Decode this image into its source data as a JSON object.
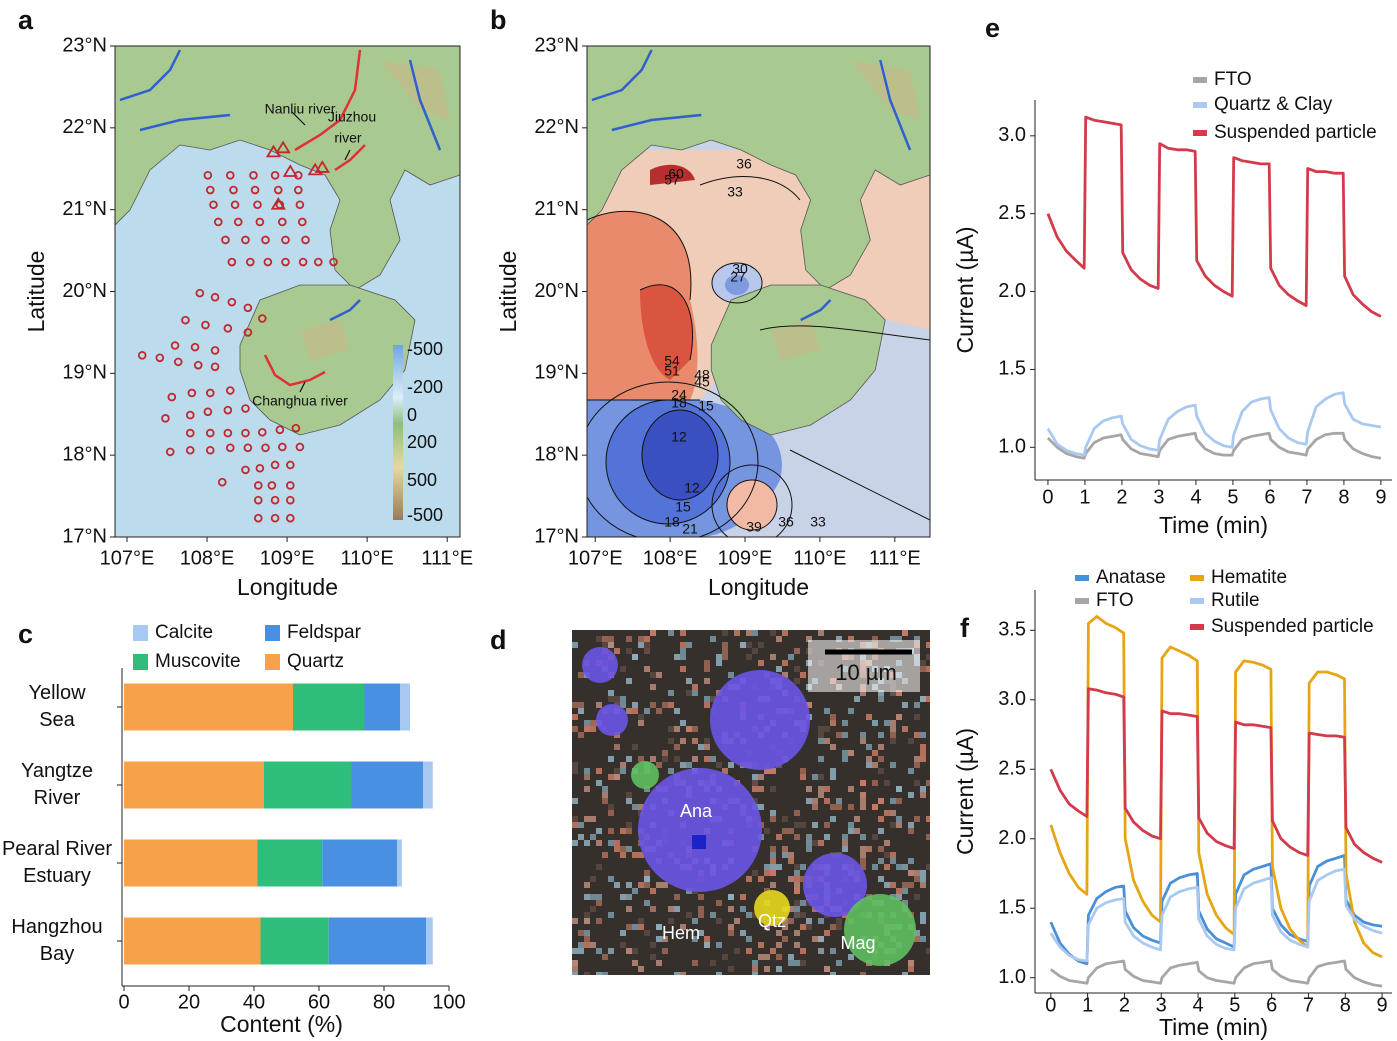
{
  "chart_data": [
    {
      "type": "map",
      "panel": "a",
      "xlabel": "Longitude",
      "ylabel": "Latitude",
      "xlim": [
        106.85,
        111.16
      ],
      "ylim": [
        17,
        23
      ],
      "xticks": [
        {
          "value": 107,
          "label": "107°E"
        },
        {
          "value": 108,
          "label": "108°E"
        },
        {
          "value": 109,
          "label": "109°E"
        },
        {
          "value": 110,
          "label": "110°E"
        },
        {
          "value": 111,
          "label": "111°E"
        }
      ],
      "yticks": [
        {
          "value": 17,
          "label": "17°N"
        },
        {
          "value": 18,
          "label": "18°N"
        },
        {
          "value": 19,
          "label": "19°N"
        },
        {
          "value": 20,
          "label": "20°N"
        },
        {
          "value": 21,
          "label": "21°N"
        },
        {
          "value": 22,
          "label": "22°N"
        },
        {
          "value": 23,
          "label": "23°N"
        }
      ],
      "stations": {
        "color": "#c0282d",
        "x": [
          108.01,
          108.29,
          108.58,
          108.85,
          109.14,
          108.04,
          108.33,
          108.6,
          108.89,
          109.14,
          108.08,
          108.35,
          108.63,
          108.91,
          109.16,
          108.14,
          108.39,
          108.66,
          108.94,
          109.19,
          108.23,
          108.48,
          108.73,
          108.98,
          109.23,
          108.31,
          108.54,
          108.76,
          108.98,
          109.2,
          109.39,
          109.58,
          107.91,
          108.1,
          108.31,
          108.51,
          108.69,
          107.73,
          107.98,
          108.26,
          108.51,
          107.6,
          107.85,
          108.1,
          107.19,
          107.41,
          107.64,
          107.89,
          108.1,
          107.56,
          107.81,
          108.04,
          108.29,
          107.48,
          107.79,
          108.01,
          108.26,
          108.48,
          107.79,
          108.04,
          108.26,
          108.48,
          108.69,
          108.91,
          109.11,
          107.54,
          107.79,
          108.04,
          108.29,
          108.51,
          108.73,
          108.94,
          109.16,
          108.19,
          108.48,
          108.66,
          108.85,
          109.04,
          108.64,
          108.81,
          109.04,
          108.64,
          108.85,
          109.04,
          108.64,
          108.85,
          109.04
        ],
        "y": [
          21.42,
          21.42,
          21.42,
          21.42,
          21.42,
          21.24,
          21.24,
          21.24,
          21.24,
          21.24,
          21.06,
          21.06,
          21.06,
          21.06,
          21.06,
          20.85,
          20.85,
          20.85,
          20.85,
          20.85,
          20.63,
          20.63,
          20.63,
          20.63,
          20.63,
          20.36,
          20.36,
          20.36,
          20.36,
          20.36,
          20.36,
          20.36,
          19.98,
          19.93,
          19.87,
          19.8,
          19.67,
          19.65,
          19.59,
          19.55,
          19.5,
          19.34,
          19.32,
          19.28,
          19.22,
          19.19,
          19.14,
          19.1,
          19.08,
          18.71,
          18.76,
          18.76,
          18.79,
          18.45,
          18.49,
          18.53,
          18.55,
          18.57,
          18.27,
          18.27,
          18.27,
          18.27,
          18.28,
          18.31,
          18.33,
          18.04,
          18.06,
          18.06,
          18.09,
          18.09,
          18.09,
          18.1,
          18.1,
          17.67,
          17.82,
          17.84,
          17.88,
          17.88,
          17.63,
          17.63,
          17.63,
          17.45,
          17.45,
          17.45,
          17.23,
          17.23,
          17.23
        ]
      },
      "river_sites": {
        "color": "#c0282d",
        "x": [
          108.83,
          108.95,
          109.04,
          109.35,
          109.44,
          108.89
        ],
        "y": [
          21.7,
          21.75,
          21.46,
          21.48,
          21.51,
          21.06
        ]
      },
      "annotations": [
        "Nanliu river",
        "Jiuzhou",
        "river",
        "Changhua river"
      ],
      "colorbar_labels": [
        -500,
        -200,
        0,
        200,
        500,
        -500
      ]
    },
    {
      "type": "map",
      "panel": "b",
      "xlabel": "Longitude",
      "ylabel": "Latitude",
      "xlim": [
        106.89,
        111.47
      ],
      "ylim": [
        17,
        23
      ],
      "xticks": [
        {
          "value": 107,
          "label": "107°E"
        },
        {
          "value": 108,
          "label": "108°E"
        },
        {
          "value": 109,
          "label": "109°E"
        },
        {
          "value": 110,
          "label": "110°E"
        },
        {
          "value": 111,
          "label": "111°E"
        }
      ],
      "yticks": [
        {
          "value": 17,
          "label": "17°N"
        },
        {
          "value": 18,
          "label": "18°N"
        },
        {
          "value": 19,
          "label": "19°N"
        },
        {
          "value": 20,
          "label": "20°N"
        },
        {
          "value": 21,
          "label": "21°N"
        },
        {
          "value": 22,
          "label": "22°N"
        },
        {
          "value": 23,
          "label": "23°N"
        }
      ],
      "contour_labels": [
        36,
        33,
        30,
        27,
        60,
        57,
        54,
        51,
        48,
        45,
        24,
        18,
        15,
        12,
        12,
        15,
        18,
        21,
        39,
        36,
        33
      ]
    },
    {
      "type": "bar",
      "panel": "c",
      "orientation": "horizontal",
      "stacked": true,
      "xlabel": "Content (%)",
      "categories": [
        [
          "Yellow",
          "Sea"
        ],
        [
          "Yangtze",
          "River"
        ],
        [
          "Pearal River",
          "Estuary"
        ],
        [
          "Hangzhou",
          "Bay"
        ]
      ],
      "series": [
        {
          "name": "Quartz",
          "color": "#f7a24a",
          "values": [
            52,
            43,
            41,
            42
          ]
        },
        {
          "name": "Muscovite",
          "color": "#2ebd7a",
          "values": [
            22,
            27,
            20,
            21
          ]
        },
        {
          "name": "Feldspar",
          "color": "#4a90e2",
          "values": [
            11,
            22,
            23,
            30
          ]
        },
        {
          "name": "Calcite",
          "color": "#a7c8f0",
          "values": [
            3,
            3,
            1.5,
            2
          ]
        }
      ],
      "xlim": [
        0,
        100
      ],
      "xticks": [
        0,
        20,
        40,
        60,
        80,
        100
      ]
    },
    {
      "type": "image",
      "panel": "d",
      "labels": [
        "Ana",
        "Hem",
        "Qtz",
        "Mag"
      ],
      "scale_bar": "10 µm"
    },
    {
      "type": "line",
      "panel": "e",
      "xlabel": "Time (min)",
      "ylabel": "Current (µA)",
      "xlim": [
        -0.35,
        9.3
      ],
      "ylim": [
        0.79,
        3.23
      ],
      "xticks": [
        0,
        1,
        2,
        3,
        4,
        5,
        6,
        7,
        8,
        9
      ],
      "yticks": [
        {
          "value": 1,
          "label": "1.0"
        },
        {
          "value": 1.5,
          "label": "1.5"
        },
        {
          "value": 2,
          "label": "2.0"
        },
        {
          "value": 2.5,
          "label": "2.5"
        },
        {
          "value": 3,
          "label": "3.0"
        }
      ],
      "x": [
        0,
        0.25,
        0.5,
        0.75,
        0.98,
        1.02,
        1.25,
        1.5,
        1.75,
        1.98,
        2.02,
        2.25,
        2.5,
        2.75,
        2.98,
        3.02,
        3.25,
        3.5,
        3.75,
        3.98,
        4.02,
        4.25,
        4.5,
        4.75,
        4.98,
        5.02,
        5.25,
        5.5,
        5.75,
        5.98,
        6.02,
        6.25,
        6.5,
        6.75,
        6.98,
        7.02,
        7.25,
        7.5,
        7.75,
        7.98,
        8.02,
        8.25,
        8.5,
        8.75,
        9
      ],
      "series": [
        {
          "name": "FTO",
          "color": "#a6a6a6",
          "values": [
            1.06,
            1.0,
            0.96,
            0.94,
            0.93,
            0.96,
            1.03,
            1.06,
            1.07,
            1.08,
            1.05,
            0.99,
            0.96,
            0.95,
            0.94,
            0.98,
            1.05,
            1.07,
            1.08,
            1.09,
            1.05,
            0.99,
            0.96,
            0.95,
            0.95,
            0.98,
            1.05,
            1.07,
            1.08,
            1.09,
            1.05,
            1.0,
            0.97,
            0.96,
            0.95,
            0.99,
            1.05,
            1.08,
            1.09,
            1.09,
            1.05,
            0.99,
            0.96,
            0.94,
            0.93
          ]
        },
        {
          "name": "Quartz & Clay",
          "color": "#a9c9f1",
          "values": [
            1.12,
            1.02,
            0.98,
            0.96,
            0.95,
            1.0,
            1.12,
            1.17,
            1.19,
            1.2,
            1.15,
            1.05,
            1.01,
            0.99,
            0.98,
            1.05,
            1.18,
            1.23,
            1.26,
            1.27,
            1.2,
            1.09,
            1.04,
            1.01,
            1.0,
            1.08,
            1.23,
            1.29,
            1.31,
            1.32,
            1.24,
            1.12,
            1.06,
            1.03,
            1.02,
            1.1,
            1.26,
            1.31,
            1.34,
            1.35,
            1.28,
            1.18,
            1.15,
            1.14,
            1.13
          ]
        },
        {
          "name": "Suspended particle",
          "color": "#d33a4a",
          "values": [
            2.5,
            2.35,
            2.26,
            2.2,
            2.15,
            3.12,
            3.1,
            3.09,
            3.08,
            3.07,
            2.25,
            2.14,
            2.08,
            2.04,
            2.02,
            2.95,
            2.92,
            2.91,
            2.91,
            2.9,
            2.2,
            2.1,
            2.04,
            2.0,
            1.97,
            2.86,
            2.84,
            2.83,
            2.82,
            2.82,
            2.15,
            2.04,
            1.98,
            1.94,
            1.91,
            2.79,
            2.77,
            2.77,
            2.76,
            2.76,
            2.1,
            1.98,
            1.92,
            1.87,
            1.84
          ]
        }
      ]
    },
    {
      "type": "line",
      "panel": "f",
      "xlabel": "Time (min)",
      "ylabel": "Current (µA)",
      "xlim": [
        -0.43,
        9.27
      ],
      "ylim": [
        0.89,
        3.79
      ],
      "xticks": [
        0,
        1,
        2,
        3,
        4,
        5,
        6,
        7,
        8,
        9
      ],
      "yticks": [
        {
          "value": 1,
          "label": "1.0"
        },
        {
          "value": 1.5,
          "label": "1.5"
        },
        {
          "value": 2,
          "label": "2.0"
        },
        {
          "value": 2.5,
          "label": "2.5"
        },
        {
          "value": 3,
          "label": "3.0"
        },
        {
          "value": 3.5,
          "label": "3.5"
        }
      ],
      "x": [
        0,
        0.25,
        0.5,
        0.75,
        0.98,
        1.02,
        1.25,
        1.5,
        1.75,
        1.98,
        2.02,
        2.25,
        2.5,
        2.75,
        2.98,
        3.02,
        3.25,
        3.5,
        3.75,
        3.98,
        4.02,
        4.25,
        4.5,
        4.75,
        4.98,
        5.02,
        5.25,
        5.5,
        5.75,
        5.98,
        6.02,
        6.25,
        6.5,
        6.75,
        6.98,
        7.02,
        7.25,
        7.5,
        7.75,
        7.98,
        8.02,
        8.25,
        8.5,
        8.75,
        9
      ],
      "series": [
        {
          "name": "Anatase",
          "color": "#4a90d9",
          "values": [
            1.4,
            1.25,
            1.17,
            1.12,
            1.1,
            1.45,
            1.57,
            1.62,
            1.65,
            1.66,
            1.48,
            1.36,
            1.3,
            1.27,
            1.25,
            1.55,
            1.68,
            1.72,
            1.74,
            1.75,
            1.48,
            1.35,
            1.28,
            1.25,
            1.22,
            1.6,
            1.74,
            1.78,
            1.8,
            1.82,
            1.5,
            1.38,
            1.31,
            1.28,
            1.26,
            1.66,
            1.8,
            1.84,
            1.86,
            1.88,
            1.56,
            1.45,
            1.4,
            1.38,
            1.37
          ]
        },
        {
          "name": "Hematite",
          "color": "#e6a514",
          "values": [
            2.1,
            1.9,
            1.75,
            1.65,
            1.6,
            3.55,
            3.6,
            3.55,
            3.52,
            3.48,
            2.0,
            1.7,
            1.55,
            1.45,
            1.4,
            3.3,
            3.38,
            3.35,
            3.32,
            3.28,
            1.9,
            1.6,
            1.45,
            1.36,
            1.31,
            3.2,
            3.28,
            3.27,
            3.25,
            3.22,
            1.8,
            1.5,
            1.35,
            1.27,
            1.22,
            3.12,
            3.2,
            3.2,
            3.18,
            3.15,
            1.75,
            1.4,
            1.25,
            1.18,
            1.15
          ]
        },
        {
          "name": "FTO",
          "color": "#a6a6a6",
          "values": [
            1.06,
            1.01,
            0.98,
            0.97,
            0.96,
            1.0,
            1.07,
            1.1,
            1.11,
            1.12,
            1.06,
            1.01,
            0.98,
            0.97,
            0.96,
            1.0,
            1.07,
            1.09,
            1.1,
            1.11,
            1.05,
            1.0,
            0.98,
            0.97,
            0.96,
            1.0,
            1.07,
            1.1,
            1.11,
            1.12,
            1.06,
            1.01,
            0.98,
            0.97,
            0.96,
            1.0,
            1.08,
            1.1,
            1.11,
            1.12,
            1.06,
            1.0,
            0.97,
            0.95,
            0.94
          ]
        },
        {
          "name": "Rutile",
          "color": "#a9c9f1",
          "values": [
            1.32,
            1.22,
            1.16,
            1.13,
            1.12,
            1.38,
            1.5,
            1.54,
            1.56,
            1.57,
            1.4,
            1.3,
            1.25,
            1.22,
            1.2,
            1.45,
            1.58,
            1.62,
            1.64,
            1.65,
            1.42,
            1.3,
            1.24,
            1.21,
            1.2,
            1.5,
            1.64,
            1.68,
            1.7,
            1.72,
            1.45,
            1.33,
            1.27,
            1.24,
            1.22,
            1.55,
            1.7,
            1.74,
            1.77,
            1.78,
            1.52,
            1.42,
            1.37,
            1.34,
            1.32
          ]
        },
        {
          "name": "Suspended particle",
          "color": "#d33a4a",
          "values": [
            2.5,
            2.35,
            2.25,
            2.2,
            2.16,
            3.08,
            3.07,
            3.05,
            3.04,
            3.02,
            2.22,
            2.12,
            2.06,
            2.02,
            2.0,
            2.92,
            2.9,
            2.9,
            2.89,
            2.88,
            2.15,
            2.04,
            1.98,
            1.95,
            1.93,
            2.84,
            2.82,
            2.82,
            2.81,
            2.8,
            2.13,
            2.0,
            1.94,
            1.9,
            1.88,
            2.76,
            2.75,
            2.74,
            2.74,
            2.73,
            2.08,
            1.96,
            1.9,
            1.86,
            1.83
          ]
        }
      ]
    }
  ]
}
